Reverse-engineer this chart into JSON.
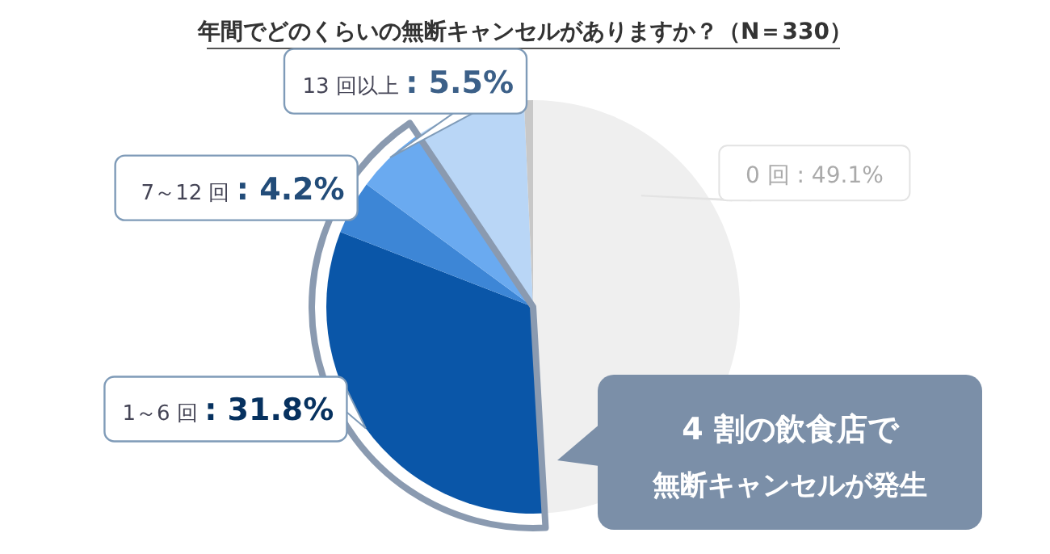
{
  "chart_data": {
    "type": "pie",
    "title": "年間でどのくらいの無断キャンセルがありますか？（N＝330）",
    "categories": [
      "0 回",
      "1～6 回",
      "7～12 回",
      "13 回以上",
      null,
      null
    ],
    "values": [
      49.1,
      31.8,
      4.2,
      5.5,
      8.7,
      0.7
    ],
    "colors": [
      "#efefef",
      "#0a56a8",
      "#3d86d6",
      "#6aaaf0",
      "#b9d6f6",
      "#c8c8c8"
    ],
    "value_labels": [
      ": 49.1%",
      ": 31.8%",
      ": 4.2%",
      ": 5.5%",
      null,
      null
    ],
    "annotations": [
      "4 割の飲食店で",
      "無断キャンセルが発生"
    ]
  }
}
